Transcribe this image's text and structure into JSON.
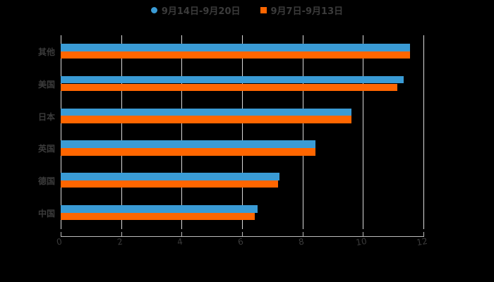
{
  "chart_data": {
    "type": "bar",
    "orientation": "horizontal",
    "title": "",
    "categories": [
      "其他",
      "美国",
      "日本",
      "英国",
      "德国",
      "中国"
    ],
    "series": [
      {
        "name": "9月14日-9月20日",
        "color": "#3a9bd5",
        "values": [
          11.56,
          11.35,
          9.62,
          8.43,
          7.24,
          6.51
        ]
      },
      {
        "name": "9月7日-9月13日",
        "color": "#ff6600",
        "values": [
          11.56,
          11.14,
          9.62,
          8.43,
          7.19,
          6.42
        ]
      }
    ],
    "xlabel": "",
    "ylabel": "",
    "xlim": [
      0,
      12
    ],
    "xticks": [
      "0",
      "2",
      "4",
      "6",
      "8",
      "10",
      "12"
    ],
    "grid": true,
    "legend_position": "top"
  },
  "legend": {
    "items": [
      {
        "label": "9月14日-9月20日",
        "color": "#3a9bd5",
        "marker": "circle"
      },
      {
        "label": "9月7日-9月13日",
        "color": "#ff6600",
        "marker": "square"
      }
    ]
  }
}
